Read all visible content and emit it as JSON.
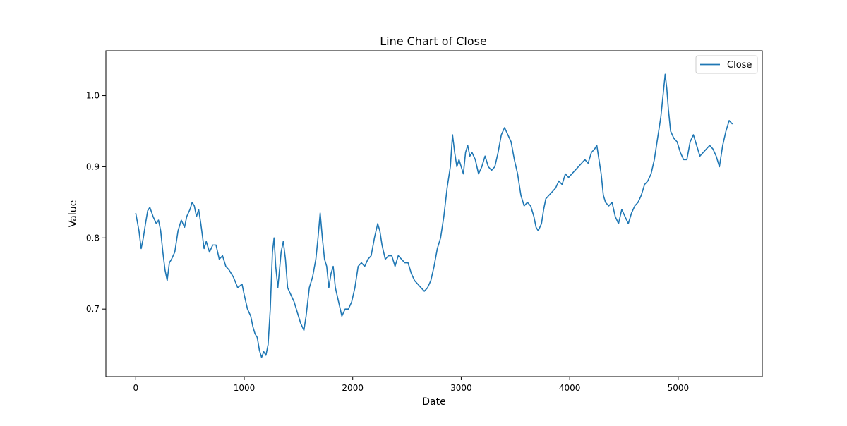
{
  "chart_data": {
    "type": "line",
    "title": "Line Chart of Close",
    "xlabel": "Date",
    "ylabel": "Value",
    "xlim": [
      -275,
      5775
    ],
    "ylim": [
      0.605,
      1.063
    ],
    "x_ticks": [
      0,
      1000,
      2000,
      3000,
      4000,
      5000
    ],
    "y_ticks": [
      0.7,
      0.8,
      0.9,
      1.0
    ],
    "x_tick_labels": [
      "0",
      "1000",
      "2000",
      "3000",
      "4000",
      "5000"
    ],
    "y_tick_labels": [
      "0.7",
      "0.8",
      "0.9",
      "1.0"
    ],
    "grid": false,
    "legend": {
      "position": "top-right",
      "entries": [
        "Close"
      ]
    },
    "series": [
      {
        "name": "Close",
        "color": "#1f77b4",
        "points": [
          [
            0,
            0.835
          ],
          [
            30,
            0.81
          ],
          [
            50,
            0.785
          ],
          [
            70,
            0.8
          ],
          [
            90,
            0.82
          ],
          [
            110,
            0.838
          ],
          [
            130,
            0.843
          ],
          [
            160,
            0.83
          ],
          [
            190,
            0.82
          ],
          [
            210,
            0.825
          ],
          [
            230,
            0.81
          ],
          [
            250,
            0.78
          ],
          [
            270,
            0.755
          ],
          [
            290,
            0.74
          ],
          [
            310,
            0.765
          ],
          [
            330,
            0.77
          ],
          [
            360,
            0.78
          ],
          [
            390,
            0.81
          ],
          [
            420,
            0.825
          ],
          [
            450,
            0.815
          ],
          [
            470,
            0.83
          ],
          [
            500,
            0.84
          ],
          [
            520,
            0.85
          ],
          [
            540,
            0.845
          ],
          [
            560,
            0.83
          ],
          [
            580,
            0.84
          ],
          [
            600,
            0.82
          ],
          [
            630,
            0.785
          ],
          [
            650,
            0.795
          ],
          [
            680,
            0.78
          ],
          [
            710,
            0.79
          ],
          [
            740,
            0.79
          ],
          [
            770,
            0.77
          ],
          [
            800,
            0.775
          ],
          [
            830,
            0.76
          ],
          [
            860,
            0.755
          ],
          [
            900,
            0.745
          ],
          [
            940,
            0.73
          ],
          [
            980,
            0.735
          ],
          [
            1000,
            0.72
          ],
          [
            1030,
            0.7
          ],
          [
            1060,
            0.69
          ],
          [
            1080,
            0.675
          ],
          [
            1100,
            0.665
          ],
          [
            1120,
            0.66
          ],
          [
            1140,
            0.642
          ],
          [
            1160,
            0.632
          ],
          [
            1180,
            0.64
          ],
          [
            1200,
            0.635
          ],
          [
            1220,
            0.65
          ],
          [
            1240,
            0.7
          ],
          [
            1260,
            0.78
          ],
          [
            1275,
            0.8
          ],
          [
            1290,
            0.76
          ],
          [
            1310,
            0.73
          ],
          [
            1340,
            0.78
          ],
          [
            1360,
            0.795
          ],
          [
            1380,
            0.77
          ],
          [
            1400,
            0.73
          ],
          [
            1430,
            0.72
          ],
          [
            1460,
            0.71
          ],
          [
            1490,
            0.695
          ],
          [
            1520,
            0.68
          ],
          [
            1550,
            0.67
          ],
          [
            1570,
            0.69
          ],
          [
            1600,
            0.73
          ],
          [
            1630,
            0.745
          ],
          [
            1660,
            0.77
          ],
          [
            1680,
            0.8
          ],
          [
            1700,
            0.835
          ],
          [
            1720,
            0.8
          ],
          [
            1740,
            0.77
          ],
          [
            1760,
            0.76
          ],
          [
            1780,
            0.73
          ],
          [
            1800,
            0.75
          ],
          [
            1820,
            0.76
          ],
          [
            1840,
            0.73
          ],
          [
            1870,
            0.71
          ],
          [
            1900,
            0.69
          ],
          [
            1930,
            0.7
          ],
          [
            1960,
            0.7
          ],
          [
            1990,
            0.71
          ],
          [
            2020,
            0.73
          ],
          [
            2050,
            0.76
          ],
          [
            2080,
            0.765
          ],
          [
            2110,
            0.76
          ],
          [
            2140,
            0.77
          ],
          [
            2170,
            0.775
          ],
          [
            2200,
            0.8
          ],
          [
            2230,
            0.82
          ],
          [
            2250,
            0.81
          ],
          [
            2270,
            0.79
          ],
          [
            2300,
            0.77
          ],
          [
            2330,
            0.775
          ],
          [
            2360,
            0.775
          ],
          [
            2390,
            0.76
          ],
          [
            2420,
            0.775
          ],
          [
            2450,
            0.77
          ],
          [
            2480,
            0.765
          ],
          [
            2510,
            0.765
          ],
          [
            2540,
            0.75
          ],
          [
            2570,
            0.74
          ],
          [
            2600,
            0.735
          ],
          [
            2630,
            0.73
          ],
          [
            2660,
            0.725
          ],
          [
            2690,
            0.73
          ],
          [
            2720,
            0.74
          ],
          [
            2750,
            0.76
          ],
          [
            2780,
            0.785
          ],
          [
            2810,
            0.8
          ],
          [
            2840,
            0.83
          ],
          [
            2870,
            0.87
          ],
          [
            2900,
            0.9
          ],
          [
            2920,
            0.945
          ],
          [
            2940,
            0.92
          ],
          [
            2960,
            0.9
          ],
          [
            2980,
            0.91
          ],
          [
            3000,
            0.9
          ],
          [
            3020,
            0.89
          ],
          [
            3040,
            0.92
          ],
          [
            3060,
            0.93
          ],
          [
            3080,
            0.915
          ],
          [
            3100,
            0.92
          ],
          [
            3130,
            0.91
          ],
          [
            3160,
            0.89
          ],
          [
            3190,
            0.9
          ],
          [
            3220,
            0.915
          ],
          [
            3250,
            0.9
          ],
          [
            3280,
            0.895
          ],
          [
            3310,
            0.9
          ],
          [
            3340,
            0.92
          ],
          [
            3370,
            0.945
          ],
          [
            3400,
            0.955
          ],
          [
            3430,
            0.945
          ],
          [
            3460,
            0.935
          ],
          [
            3490,
            0.91
          ],
          [
            3520,
            0.89
          ],
          [
            3550,
            0.86
          ],
          [
            3580,
            0.845
          ],
          [
            3610,
            0.85
          ],
          [
            3640,
            0.845
          ],
          [
            3670,
            0.83
          ],
          [
            3690,
            0.815
          ],
          [
            3710,
            0.81
          ],
          [
            3740,
            0.82
          ],
          [
            3760,
            0.84
          ],
          [
            3780,
            0.855
          ],
          [
            3810,
            0.86
          ],
          [
            3840,
            0.865
          ],
          [
            3870,
            0.87
          ],
          [
            3900,
            0.88
          ],
          [
            3930,
            0.875
          ],
          [
            3960,
            0.89
          ],
          [
            3990,
            0.885
          ],
          [
            4020,
            0.89
          ],
          [
            4050,
            0.895
          ],
          [
            4080,
            0.9
          ],
          [
            4110,
            0.905
          ],
          [
            4140,
            0.91
          ],
          [
            4170,
            0.905
          ],
          [
            4200,
            0.92
          ],
          [
            4230,
            0.925
          ],
          [
            4250,
            0.93
          ],
          [
            4270,
            0.91
          ],
          [
            4290,
            0.89
          ],
          [
            4310,
            0.86
          ],
          [
            4330,
            0.85
          ],
          [
            4360,
            0.845
          ],
          [
            4390,
            0.85
          ],
          [
            4420,
            0.83
          ],
          [
            4450,
            0.82
          ],
          [
            4480,
            0.84
          ],
          [
            4510,
            0.83
          ],
          [
            4540,
            0.82
          ],
          [
            4570,
            0.835
          ],
          [
            4600,
            0.845
          ],
          [
            4630,
            0.85
          ],
          [
            4660,
            0.86
          ],
          [
            4690,
            0.875
          ],
          [
            4720,
            0.88
          ],
          [
            4750,
            0.89
          ],
          [
            4780,
            0.91
          ],
          [
            4800,
            0.93
          ],
          [
            4820,
            0.95
          ],
          [
            4840,
            0.97
          ],
          [
            4860,
            1.0
          ],
          [
            4880,
            1.03
          ],
          [
            4895,
            1.01
          ],
          [
            4910,
            0.98
          ],
          [
            4930,
            0.95
          ],
          [
            4960,
            0.94
          ],
          [
            4990,
            0.935
          ],
          [
            5020,
            0.92
          ],
          [
            5050,
            0.91
          ],
          [
            5080,
            0.91
          ],
          [
            5110,
            0.935
          ],
          [
            5140,
            0.945
          ],
          [
            5170,
            0.93
          ],
          [
            5200,
            0.915
          ],
          [
            5230,
            0.92
          ],
          [
            5260,
            0.925
          ],
          [
            5290,
            0.93
          ],
          [
            5320,
            0.925
          ],
          [
            5350,
            0.915
          ],
          [
            5380,
            0.9
          ],
          [
            5410,
            0.93
          ],
          [
            5440,
            0.95
          ],
          [
            5470,
            0.965
          ],
          [
            5500,
            0.96
          ]
        ]
      }
    ]
  }
}
